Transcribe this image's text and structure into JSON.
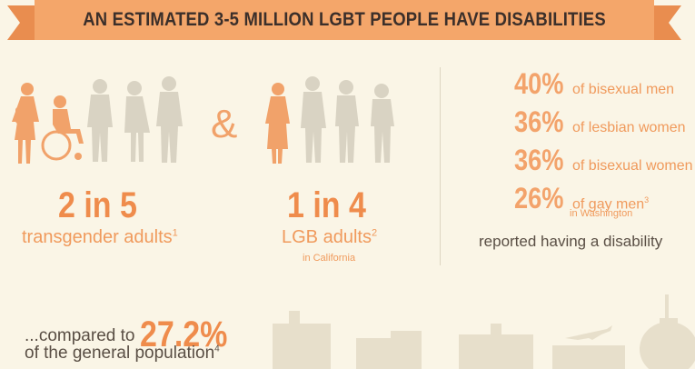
{
  "banner": {
    "title": "AN ESTIMATED 3-5 MILLION LGBT PEOPLE HAVE DISABILITIES"
  },
  "left_stat": {
    "ratio": "2 in 5",
    "label": "transgender adults",
    "footnote": "1",
    "highlighted_figures": 2,
    "total_figures": 5
  },
  "amp": "&",
  "mid_stat": {
    "ratio": "1 in 4",
    "label": "LGB adults",
    "footnote": "2",
    "region": "in California",
    "highlighted_figures": 1,
    "total_figures": 4
  },
  "right_stats": {
    "items": [
      {
        "pct": "40%",
        "label": "of bisexual men",
        "footnote": ""
      },
      {
        "pct": "36%",
        "label": "of lesbian women",
        "footnote": ""
      },
      {
        "pct": "36%",
        "label": "of bisexual women",
        "footnote": ""
      },
      {
        "pct": "26%",
        "label": "of gay men",
        "footnote": "3"
      }
    ],
    "region": "in Washington",
    "conclusion": "reported having a disability"
  },
  "comparison": {
    "prefix": "...compared to",
    "pct": "27.2%",
    "label": "of the general population",
    "footnote": "4"
  },
  "colors": {
    "accent": "#ef8c4c",
    "banner": "#f4a66a",
    "figure_muted": "#d9d3c3",
    "background": "#faf5e6"
  }
}
